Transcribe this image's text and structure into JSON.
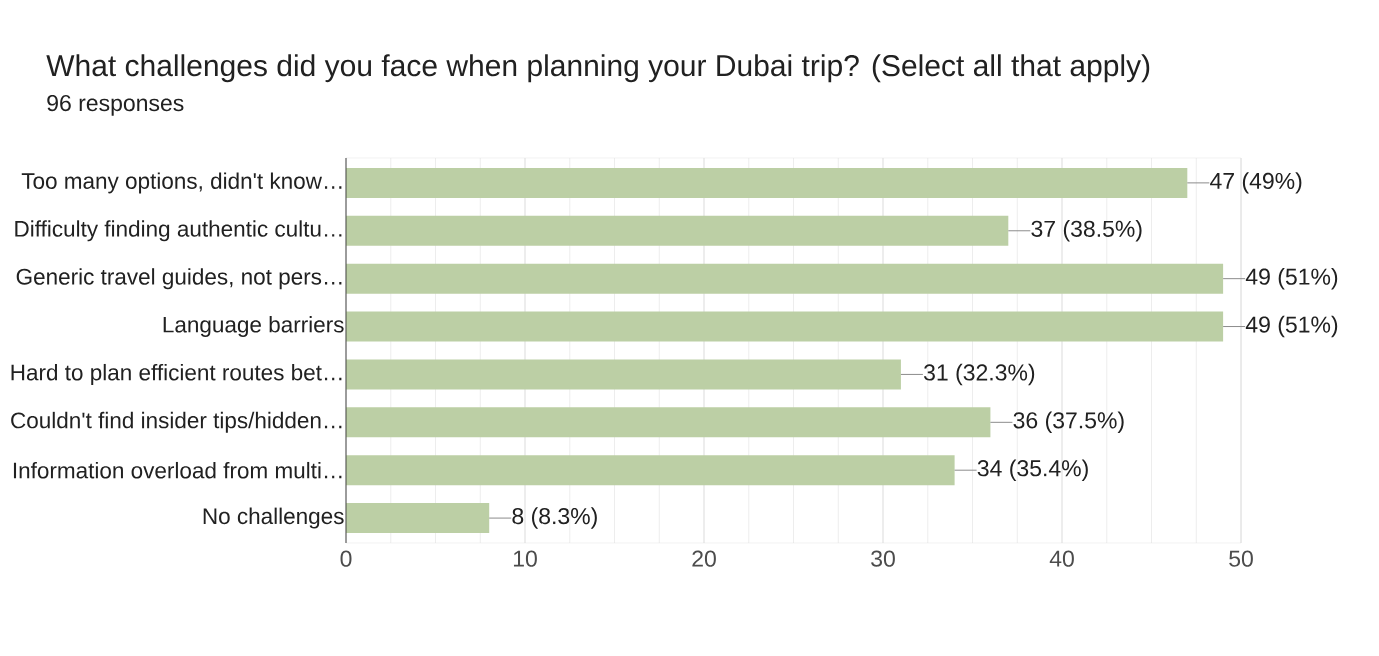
{
  "chart_data": {
    "type": "bar",
    "orientation": "horizontal",
    "title": "What challenges did you face when planning your Dubai trip? (Select all that apply)",
    "subtitle": "96 responses",
    "categories": [
      "Too many options, didn't know…",
      "Difficulty finding authentic cultu…",
      "Generic travel guides, not pers…",
      "Language barriers",
      "Hard to plan efficient routes bet…",
      "Couldn't find insider tips/hidden…",
      "Information overload from multi…",
      "No challenges"
    ],
    "values": [
      47,
      37,
      49,
      49,
      31,
      36,
      34,
      8
    ],
    "value_labels": [
      "47 (49%)",
      "37 (38.5%)",
      "49 (51%)",
      "49 (51%)",
      "31 (32.3%)",
      "36 (37.5%)",
      "34 (35.4%)",
      "8 (8.3%)"
    ],
    "color": "#bccfa5",
    "xlim": [
      0,
      50
    ],
    "xticks": [
      0,
      10,
      20,
      30,
      40,
      50
    ],
    "grid": "x"
  }
}
